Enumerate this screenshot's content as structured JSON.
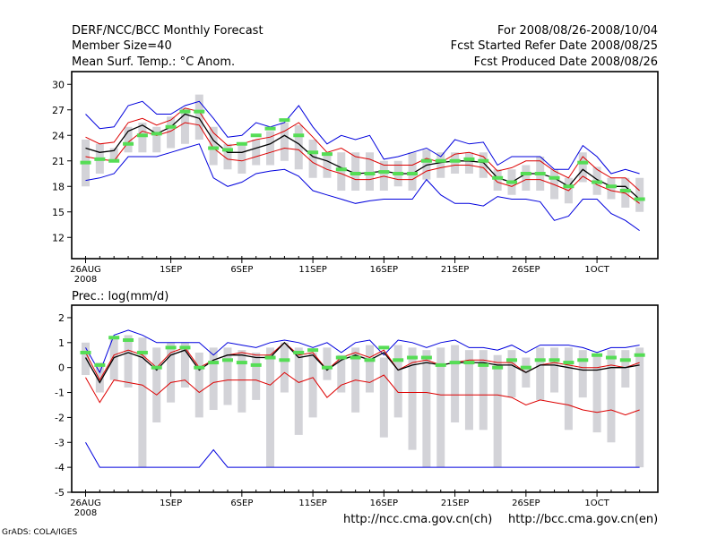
{
  "header": {
    "title": "DERF/NCC/BCC Monthly Forecast",
    "member_size": "Member Size=40",
    "variable": "Mean Surf. Temp.: °C Anom.",
    "forecast_period": "For 2008/08/26-2008/10/04",
    "start_date": "Fcst Started Refer Date 2008/08/25",
    "produced_date": "Fcst Produced Date 2008/08/26"
  },
  "footer": {
    "credit": "GrADS: COLA/IGES",
    "url_ncc": "http://ncc.cma.gov.cn(ch)",
    "url_bcc": "http://bcc.cma.gov.cn(en)"
  },
  "colors": {
    "spread_bar": "#d3d3d8",
    "marker": "#55dd55",
    "median": "#000000",
    "band_inner": "#dd0000",
    "band_outer": "#0000dd"
  },
  "chart_data": [
    {
      "type": "line",
      "title": "Mean Surf. Temp.: °C Anom.",
      "x": [
        0,
        1,
        2,
        3,
        4,
        5,
        6,
        7,
        8,
        9,
        10,
        11,
        12,
        13,
        14,
        15,
        16,
        17,
        18,
        19,
        20,
        21,
        22,
        23,
        24,
        25,
        26,
        27,
        28,
        29,
        30,
        31,
        32,
        33,
        34,
        35,
        36,
        37,
        38,
        39
      ],
      "x_tick_labels": [
        {
          "x": 0,
          "label": "26AUG",
          "sublabel": "2008"
        },
        {
          "x": 6,
          "label": "1SEP"
        },
        {
          "x": 11,
          "label": "6SEP"
        },
        {
          "x": 16,
          "label": "11SEP"
        },
        {
          "x": 21,
          "label": "16SEP"
        },
        {
          "x": 26,
          "label": "21SEP"
        },
        {
          "x": 31,
          "label": "26SEP"
        },
        {
          "x": 36,
          "label": "1OCT"
        }
      ],
      "ylim": [
        9.5,
        31.5
      ],
      "yticks": [
        12,
        15,
        18,
        21,
        24,
        27,
        30
      ],
      "series": [
        {
          "name": "max",
          "color": "blue",
          "values": [
            26.5,
            24.8,
            25.0,
            27.5,
            28.0,
            26.5,
            26.5,
            27.5,
            28.0,
            26.0,
            23.8,
            24.0,
            25.5,
            25.0,
            25.5,
            27.5,
            25.0,
            23.0,
            24.0,
            23.5,
            24.0,
            21.2,
            21.5,
            22.0,
            22.5,
            21.5,
            23.5,
            23.0,
            23.2,
            20.5,
            21.5,
            21.5,
            21.5,
            20.0,
            20.0,
            22.8,
            21.5,
            19.5,
            20.0,
            19.5
          ]
        },
        {
          "name": "upper",
          "color": "red",
          "values": [
            23.8,
            23.0,
            23.2,
            25.5,
            26.0,
            25.2,
            25.8,
            27.2,
            26.8,
            24.3,
            22.8,
            23.0,
            23.5,
            23.8,
            24.5,
            25.5,
            23.8,
            22.0,
            22.5,
            21.5,
            21.2,
            20.5,
            20.5,
            20.5,
            21.3,
            20.8,
            21.8,
            22.0,
            21.5,
            19.8,
            20.2,
            21.0,
            21.0,
            19.8,
            19.0,
            21.5,
            20.0,
            19.0,
            19.0,
            17.5
          ]
        },
        {
          "name": "median",
          "color": "black",
          "values": [
            22.5,
            22.0,
            22.2,
            24.5,
            25.2,
            24.2,
            25.0,
            26.5,
            26.0,
            23.4,
            22.0,
            22.0,
            22.5,
            23.0,
            24.0,
            23.0,
            21.5,
            21.0,
            20.2,
            19.5,
            19.6,
            19.8,
            19.5,
            19.5,
            20.5,
            20.8,
            21.0,
            21.0,
            20.8,
            19.0,
            18.5,
            19.5,
            19.5,
            19.0,
            18.0,
            20.0,
            18.8,
            18.0,
            18.0,
            16.5
          ]
        },
        {
          "name": "lower",
          "color": "red",
          "values": [
            21.5,
            21.2,
            21.0,
            23.2,
            24.5,
            24.0,
            24.5,
            25.5,
            25.2,
            22.5,
            21.2,
            21.0,
            21.5,
            22.0,
            22.5,
            22.3,
            20.8,
            20.0,
            19.5,
            18.8,
            18.8,
            19.2,
            18.8,
            18.8,
            19.8,
            20.2,
            20.5,
            20.5,
            20.2,
            18.5,
            18.0,
            18.8,
            18.8,
            18.2,
            17.5,
            19.2,
            18.2,
            17.5,
            17.2,
            16.0
          ]
        },
        {
          "name": "min",
          "color": "blue",
          "values": [
            18.7,
            19.0,
            19.5,
            21.5,
            21.5,
            21.5,
            22.0,
            22.5,
            23.0,
            19.0,
            18.0,
            18.5,
            19.5,
            19.8,
            20.0,
            19.2,
            17.5,
            17.0,
            16.5,
            16.0,
            16.3,
            16.5,
            16.5,
            16.5,
            18.8,
            17.0,
            16.0,
            16.0,
            15.7,
            16.8,
            16.5,
            16.5,
            16.2,
            14.0,
            14.5,
            16.5,
            16.5,
            14.8,
            14.0,
            12.8
          ]
        },
        {
          "name": "spread_hi",
          "color": "gray",
          "values": [
            23.5,
            23.0,
            22.5,
            25.0,
            25.5,
            25.0,
            26.2,
            27.2,
            28.8,
            25.0,
            23.0,
            23.0,
            23.5,
            24.5,
            25.5,
            25.2,
            23.5,
            22.0,
            22.0,
            22.0,
            22.0,
            21.0,
            21.0,
            22.0,
            22.3,
            22.0,
            22.0,
            22.0,
            22.0,
            20.0,
            20.0,
            20.5,
            21.5,
            20.0,
            19.0,
            22.0,
            20.3,
            19.0,
            19.0,
            19.0
          ]
        },
        {
          "name": "spread_lo",
          "color": "gray",
          "values": [
            18.0,
            19.5,
            21.0,
            22.0,
            22.0,
            22.0,
            22.5,
            23.0,
            23.5,
            20.5,
            20.0,
            19.5,
            20.5,
            20.5,
            21.0,
            20.0,
            19.0,
            19.0,
            17.5,
            17.5,
            17.5,
            17.5,
            18.0,
            17.5,
            18.8,
            19.0,
            19.5,
            19.5,
            19.0,
            17.5,
            17.0,
            17.5,
            17.5,
            16.5,
            16.0,
            18.5,
            17.0,
            16.5,
            15.5,
            15.0
          ]
        },
        {
          "name": "marker",
          "color": "green",
          "values": [
            20.8,
            21.2,
            21.0,
            23.0,
            24.0,
            24.2,
            25.0,
            26.8,
            26.8,
            22.5,
            22.3,
            23.0,
            24.0,
            24.8,
            25.8,
            24.0,
            22.0,
            21.8,
            20.0,
            19.5,
            19.5,
            19.7,
            19.5,
            19.5,
            21.0,
            21.0,
            21.0,
            21.2,
            21.0,
            19.0,
            18.5,
            19.5,
            19.5,
            19.0,
            18.0,
            20.8,
            18.5,
            18.0,
            17.5,
            16.5
          ]
        }
      ]
    },
    {
      "type": "line",
      "title": "Prec.: log(mm/d)",
      "x": [
        0,
        1,
        2,
        3,
        4,
        5,
        6,
        7,
        8,
        9,
        10,
        11,
        12,
        13,
        14,
        15,
        16,
        17,
        18,
        19,
        20,
        21,
        22,
        23,
        24,
        25,
        26,
        27,
        28,
        29,
        30,
        31,
        32,
        33,
        34,
        35,
        36,
        37,
        38,
        39
      ],
      "x_tick_labels": [
        {
          "x": 0,
          "label": "26AUG",
          "sublabel": "2008"
        },
        {
          "x": 6,
          "label": "1SEP"
        },
        {
          "x": 11,
          "label": "6SEP"
        },
        {
          "x": 16,
          "label": "11SEP"
        },
        {
          "x": 21,
          "label": "16SEP"
        },
        {
          "x": 26,
          "label": "21SEP"
        },
        {
          "x": 31,
          "label": "26SEP"
        },
        {
          "x": 36,
          "label": "1OCT"
        }
      ],
      "ylim": [
        -5,
        2.5
      ],
      "yticks": [
        -5,
        -4,
        -3,
        -2,
        -1,
        0,
        1,
        2
      ],
      "series": [
        {
          "name": "max",
          "color": "blue",
          "values": [
            0.8,
            -0.2,
            1.3,
            1.5,
            1.3,
            1.0,
            1.0,
            1.0,
            1.0,
            0.5,
            1.0,
            0.9,
            0.8,
            1.0,
            1.1,
            1.0,
            0.8,
            1.0,
            0.6,
            1.0,
            1.1,
            0.5,
            1.1,
            1.0,
            0.8,
            1.0,
            1.1,
            0.8,
            0.8,
            0.7,
            0.9,
            0.6,
            0.9,
            0.9,
            0.9,
            0.8,
            0.6,
            0.8,
            0.8,
            0.9
          ]
        },
        {
          "name": "upper",
          "color": "red",
          "values": [
            0.6,
            -0.5,
            0.5,
            0.7,
            0.5,
            0.0,
            0.6,
            0.8,
            0.0,
            0.3,
            0.5,
            0.6,
            0.5,
            0.5,
            1.0,
            0.5,
            0.6,
            -0.1,
            0.4,
            0.6,
            0.4,
            0.7,
            -0.1,
            0.2,
            0.3,
            0.1,
            0.2,
            0.3,
            0.3,
            0.2,
            0.2,
            -0.2,
            0.1,
            0.2,
            0.1,
            0.0,
            0.0,
            0.1,
            0.0,
            0.2
          ]
        },
        {
          "name": "median",
          "color": "black",
          "values": [
            0.4,
            -0.6,
            0.4,
            0.6,
            0.4,
            -0.1,
            0.5,
            0.7,
            -0.1,
            0.3,
            0.5,
            0.5,
            0.4,
            0.4,
            1.0,
            0.4,
            0.5,
            -0.1,
            0.3,
            0.5,
            0.3,
            0.6,
            -0.1,
            0.1,
            0.2,
            0.1,
            0.2,
            0.2,
            0.2,
            0.1,
            0.1,
            -0.2,
            0.1,
            0.1,
            0.0,
            -0.1,
            -0.1,
            0.0,
            0.0,
            0.1
          ]
        },
        {
          "name": "lower",
          "color": "red",
          "values": [
            -0.4,
            -1.4,
            -0.5,
            -0.6,
            -0.7,
            -1.1,
            -0.6,
            -0.5,
            -1.0,
            -0.6,
            -0.5,
            -0.5,
            -0.5,
            -0.7,
            -0.2,
            -0.6,
            -0.4,
            -1.2,
            -0.7,
            -0.5,
            -0.6,
            -0.3,
            -1.0,
            -1.0,
            -1.0,
            -1.1,
            -1.1,
            -1.1,
            -1.1,
            -1.1,
            -1.2,
            -1.5,
            -1.3,
            -1.4,
            -1.5,
            -1.7,
            -1.8,
            -1.7,
            -1.9,
            -1.7
          ]
        },
        {
          "name": "min",
          "color": "blue",
          "values": [
            -3.0,
            -4.0,
            -4.0,
            -4.0,
            -4.0,
            -4.0,
            -4.0,
            -4.0,
            -4.0,
            -3.3,
            -4.0,
            -4.0,
            -4.0,
            -4.0,
            -4.0,
            -4.0,
            -4.0,
            -4.0,
            -4.0,
            -4.0,
            -4.0,
            -4.0,
            -4.0,
            -4.0,
            -4.0,
            -4.0,
            -4.0,
            -4.0,
            -4.0,
            -4.0,
            -4.0,
            -4.0,
            -4.0,
            -4.0,
            -4.0,
            -4.0,
            -4.0,
            -4.0,
            -4.0,
            -4.0
          ]
        },
        {
          "name": "spread_hi",
          "color": "gray",
          "values": [
            1.0,
            0.2,
            1.2,
            1.3,
            1.2,
            0.8,
            1.0,
            1.0,
            0.6,
            0.8,
            0.8,
            0.7,
            0.6,
            0.8,
            1.0,
            0.8,
            0.6,
            0.8,
            0.5,
            0.8,
            0.9,
            0.4,
            0.9,
            0.8,
            0.7,
            0.8,
            0.9,
            0.7,
            0.7,
            0.5,
            0.7,
            0.4,
            0.8,
            0.8,
            0.8,
            0.7,
            0.5,
            0.7,
            0.7,
            0.8
          ]
        },
        {
          "name": "spread_lo",
          "color": "gray",
          "values": [
            -0.3,
            -1.0,
            -0.5,
            -0.8,
            -4.0,
            -2.2,
            -1.4,
            -0.8,
            -2.0,
            -1.7,
            -1.5,
            -1.8,
            -1.3,
            -4.0,
            -1.0,
            -2.7,
            -2.0,
            -0.5,
            -1.0,
            -1.8,
            -1.0,
            -2.8,
            -2.0,
            -3.3,
            -4.0,
            -4.0,
            -2.2,
            -2.5,
            -2.5,
            -4.0,
            -1.2,
            -0.8,
            -1.3,
            -1.0,
            -2.5,
            -1.2,
            -2.6,
            -3.0,
            -0.8,
            -4.0
          ]
        },
        {
          "name": "marker",
          "color": "green",
          "values": [
            0.6,
            0.1,
            1.2,
            1.1,
            0.6,
            0.0,
            0.8,
            0.8,
            0.0,
            0.2,
            0.3,
            0.2,
            0.1,
            0.4,
            0.3,
            0.6,
            0.7,
            0.0,
            0.4,
            0.4,
            0.3,
            0.8,
            0.3,
            0.4,
            0.4,
            0.1,
            0.2,
            0.2,
            0.1,
            0.0,
            0.3,
            0.0,
            0.3,
            0.3,
            0.2,
            0.3,
            0.5,
            0.4,
            0.3,
            0.5
          ]
        }
      ]
    }
  ]
}
